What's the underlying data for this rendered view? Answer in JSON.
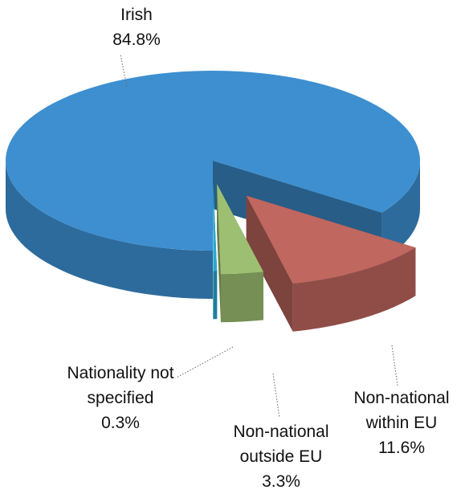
{
  "chart_data": {
    "type": "pie",
    "categories": [
      "Irish",
      "Non-national within EU",
      "Non-national outside EU",
      "Nationality not specified"
    ],
    "values": [
      84.8,
      11.6,
      3.3,
      0.3
    ],
    "value_labels": [
      "84.8%",
      "11.6%",
      "3.3%",
      "0.3%"
    ],
    "colors": [
      "#3d8fd0",
      "#c0675f",
      "#9dbf72",
      "#2aa8d0"
    ]
  }
}
